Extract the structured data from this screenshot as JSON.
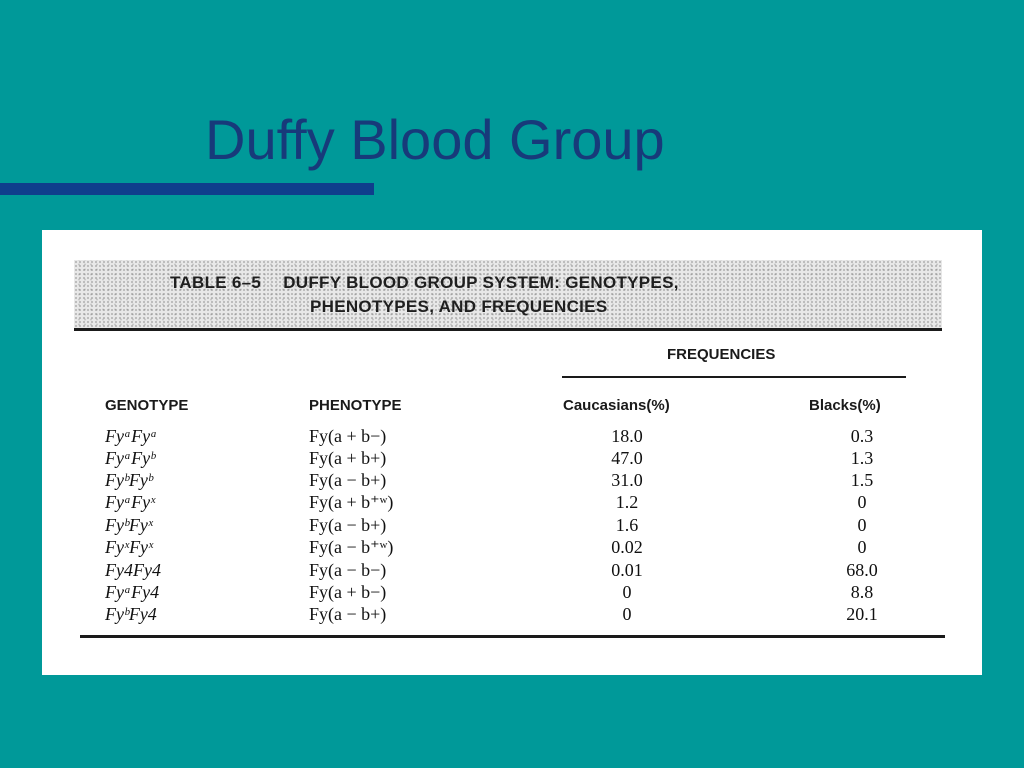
{
  "slide": {
    "title": "Duffy Blood Group"
  },
  "table": {
    "caption_label": "TABLE 6–5",
    "caption_line1": "DUFFY BLOOD GROUP SYSTEM: GENOTYPES,",
    "caption_line2": "PHENOTYPES, AND FREQUENCIES",
    "frequencies_header": "FREQUENCIES",
    "headers": {
      "genotype": "GENOTYPE",
      "phenotype": "PHENOTYPE",
      "caucasians": "Caucasians(%)",
      "blacks": "Blacks(%)"
    },
    "rows": [
      {
        "genotype": "FyᵃFyᵃ",
        "phenotype": "Fy(a + b−)",
        "caucasians": "18.0",
        "blacks": "0.3"
      },
      {
        "genotype": "FyᵃFyᵇ",
        "phenotype": "Fy(a + b+)",
        "caucasians": "47.0",
        "blacks": "1.3"
      },
      {
        "genotype": "FyᵇFyᵇ",
        "phenotype": "Fy(a − b+)",
        "caucasians": "31.0",
        "blacks": "1.5"
      },
      {
        "genotype": "FyᵃFyˣ",
        "phenotype": "Fy(a + b⁺ʷ)",
        "caucasians": "1.2",
        "blacks": "0"
      },
      {
        "genotype": "FyᵇFyˣ",
        "phenotype": "Fy(a − b+)",
        "caucasians": "1.6",
        "blacks": "0"
      },
      {
        "genotype": "FyˣFyˣ",
        "phenotype": "Fy(a − b⁺ʷ)",
        "caucasians": "0.02",
        "blacks": "0"
      },
      {
        "genotype": "Fy4Fy4",
        "phenotype": "Fy(a − b−)",
        "caucasians": "0.01",
        "blacks": "68.0"
      },
      {
        "genotype": "FyᵃFy4",
        "phenotype": "Fy(a + b−)",
        "caucasians": "0",
        "blacks": "8.8"
      },
      {
        "genotype": "FyᵇFy4",
        "phenotype": "Fy(a − b+)",
        "caucasians": "0",
        "blacks": "20.1"
      }
    ]
  },
  "colors": {
    "background": "#009999",
    "title": "#173a7a",
    "accent_rule": "#0f3e8c"
  }
}
